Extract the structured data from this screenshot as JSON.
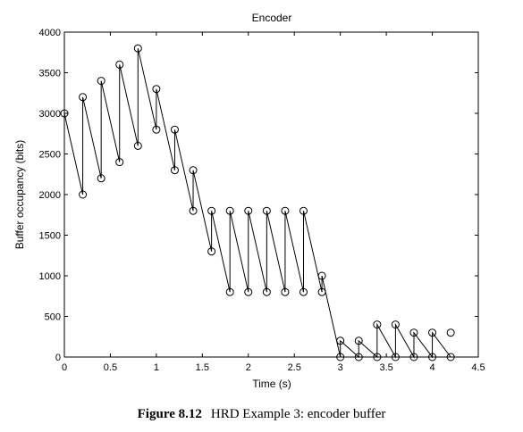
{
  "chart_data": {
    "type": "line",
    "title": "Encoder",
    "xlabel": "Time (s)",
    "ylabel": "Buffer occupancy (bits)",
    "xlim": [
      0,
      4.5
    ],
    "ylim": [
      0,
      4000
    ],
    "xticks": [
      "0",
      "0.5",
      "1",
      "1.5",
      "2",
      "2.5",
      "3",
      "3.5",
      "4",
      "4.5"
    ],
    "yticks": [
      "0",
      "500",
      "1000",
      "1500",
      "2000",
      "2500",
      "3000",
      "3500",
      "4000"
    ],
    "grid": false,
    "marker": "circle",
    "series": [
      {
        "x": [
          0,
          0.2,
          0.2,
          0.4,
          0.4,
          0.6,
          0.6,
          0.8,
          0.8,
          1.0,
          1.0,
          1.2,
          1.2,
          1.4,
          1.4,
          1.6,
          1.6,
          1.8,
          1.8,
          2.0,
          2.0,
          2.2,
          2.2,
          2.4,
          2.4,
          2.6,
          2.6,
          2.8,
          2.8,
          3.0,
          3.0,
          3.2,
          3.2,
          3.4,
          3.4,
          3.6,
          3.6,
          3.8,
          3.8,
          4.0,
          4.0,
          4.2
        ],
        "y": [
          3000,
          2000,
          3200,
          2200,
          3400,
          2400,
          3600,
          2600,
          3800,
          2800,
          3300,
          2300,
          2800,
          1800,
          2300,
          1300,
          1800,
          800,
          1800,
          800,
          1800,
          800,
          1800,
          800,
          1800,
          800,
          1800,
          800,
          1000,
          0,
          200,
          0,
          200,
          0,
          400,
          0,
          400,
          0,
          300,
          0,
          300,
          0
        ]
      }
    ],
    "extra_points": [
      {
        "x": 4.2,
        "y": 300
      }
    ]
  },
  "caption": {
    "number": "Figure 8.12",
    "text": "HRD Example 3: encoder buffer"
  }
}
